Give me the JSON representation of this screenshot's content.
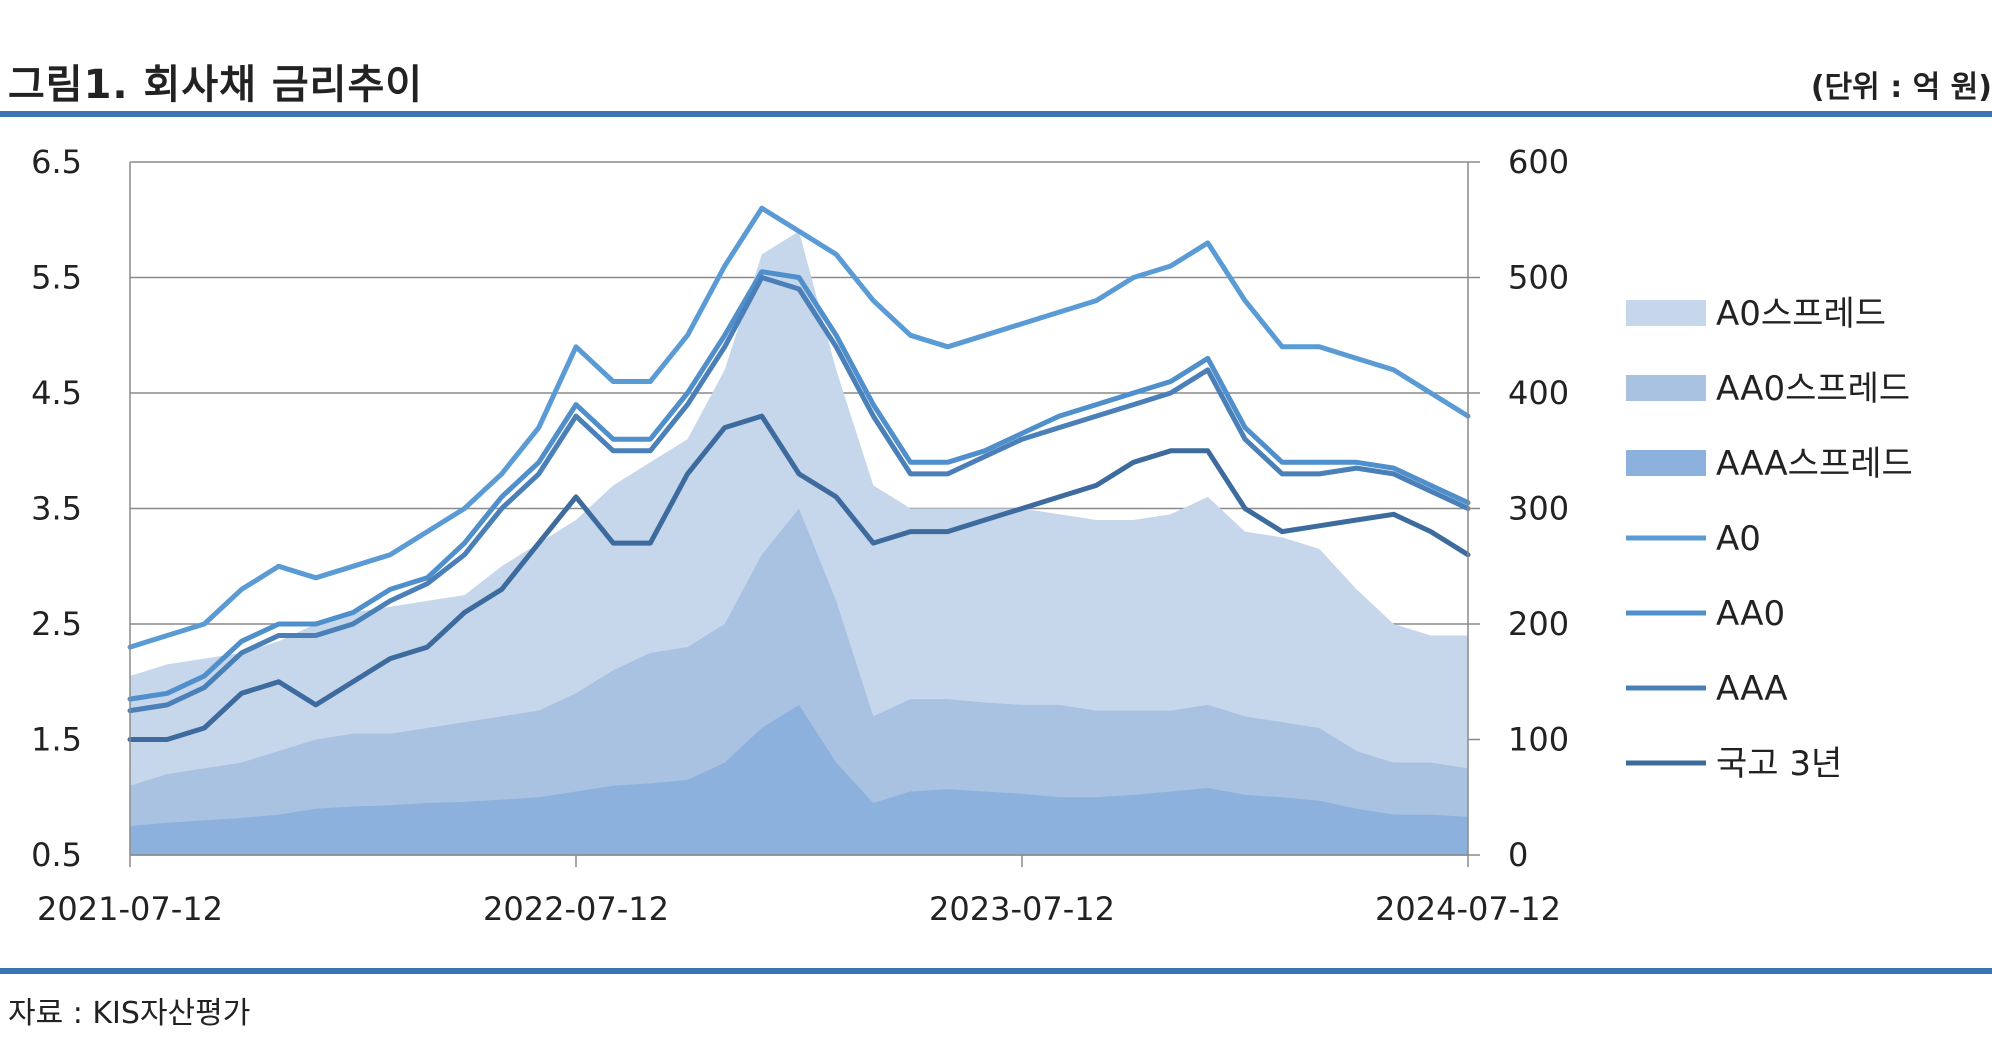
{
  "title": "그림1. 회사채 금리추이",
  "unit": "(단위 : 억 원)",
  "source": "자료 : KIS자산평가",
  "chart_data": {
    "type": "line",
    "title": "그림1. 회사채 금리추이",
    "x_ticks": [
      "2021-07-12",
      "2022-07-12",
      "2023-07-12",
      "2024-07-12"
    ],
    "y_left": {
      "min": 0.5,
      "max": 6.5,
      "ticks": [
        "6.5",
        "5.5",
        "4.5",
        "3.5",
        "2.5",
        "1.5",
        "0.5"
      ]
    },
    "y_right": {
      "min": 0,
      "max": 600,
      "ticks": [
        "600",
        "500",
        "400",
        "300",
        "200",
        "100",
        "0"
      ]
    },
    "grid": true,
    "legend_position": "right",
    "x": [
      "2021-07",
      "2021-08",
      "2021-09",
      "2021-10",
      "2021-11",
      "2021-12",
      "2022-01",
      "2022-02",
      "2022-03",
      "2022-04",
      "2022-05",
      "2022-06",
      "2022-07",
      "2022-08",
      "2022-09",
      "2022-10",
      "2022-11",
      "2022-12",
      "2023-01",
      "2023-02",
      "2023-03",
      "2023-04",
      "2023-05",
      "2023-06",
      "2023-07",
      "2023-08",
      "2023-09",
      "2023-10",
      "2023-11",
      "2023-12",
      "2024-01",
      "2024-02",
      "2024-03",
      "2024-04",
      "2024-05",
      "2024-06",
      "2024-07"
    ],
    "series": [
      {
        "name": "A0스프레드",
        "type": "area",
        "axis": "right",
        "color": "#c6d6eb",
        "values": [
          155,
          165,
          170,
          175,
          185,
          200,
          210,
          215,
          220,
          225,
          250,
          270,
          290,
          320,
          340,
          360,
          420,
          520,
          540,
          420,
          320,
          300,
          300,
          300,
          300,
          295,
          290,
          290,
          295,
          310,
          280,
          275,
          265,
          230,
          200,
          190,
          190
        ]
      },
      {
        "name": "AA0스프레드",
        "type": "area",
        "axis": "right",
        "color": "#a9c2e2",
        "values": [
          60,
          70,
          75,
          80,
          90,
          100,
          105,
          105,
          110,
          115,
          120,
          125,
          140,
          160,
          175,
          180,
          200,
          260,
          300,
          220,
          120,
          135,
          135,
          132,
          130,
          130,
          125,
          125,
          125,
          130,
          120,
          115,
          110,
          90,
          80,
          80,
          75
        ]
      },
      {
        "name": "AAA스프레드",
        "type": "area",
        "axis": "right",
        "color": "#8cb1dc",
        "values": [
          25,
          28,
          30,
          32,
          35,
          40,
          42,
          43,
          45,
          46,
          48,
          50,
          55,
          60,
          62,
          65,
          80,
          110,
          130,
          80,
          45,
          55,
          57,
          55,
          53,
          50,
          50,
          52,
          55,
          58,
          52,
          50,
          47,
          40,
          35,
          35,
          33
        ]
      },
      {
        "name": "A0",
        "type": "line",
        "axis": "left",
        "color": "#5b9bd5",
        "values": [
          2.3,
          2.4,
          2.5,
          2.8,
          3.0,
          2.9,
          3.0,
          3.1,
          3.3,
          3.5,
          3.8,
          4.2,
          4.9,
          4.6,
          4.6,
          5.0,
          5.6,
          6.1,
          5.9,
          5.7,
          5.3,
          5.0,
          4.9,
          5.0,
          5.1,
          5.2,
          5.3,
          5.5,
          5.6,
          5.8,
          5.3,
          4.9,
          4.9,
          4.8,
          4.7,
          4.5,
          4.3
        ]
      },
      {
        "name": "AA0",
        "type": "line",
        "axis": "left",
        "color": "#4f8fcc",
        "values": [
          1.85,
          1.9,
          2.05,
          2.35,
          2.5,
          2.5,
          2.6,
          2.8,
          2.9,
          3.2,
          3.6,
          3.9,
          4.4,
          4.1,
          4.1,
          4.5,
          5.0,
          5.55,
          5.5,
          5.0,
          4.4,
          3.9,
          3.9,
          4.0,
          4.15,
          4.3,
          4.4,
          4.5,
          4.6,
          4.8,
          4.2,
          3.9,
          3.9,
          3.9,
          3.85,
          3.7,
          3.55
        ]
      },
      {
        "name": "AAA",
        "type": "line",
        "axis": "left",
        "color": "#4a7fb8",
        "values": [
          1.75,
          1.8,
          1.95,
          2.25,
          2.4,
          2.4,
          2.5,
          2.7,
          2.85,
          3.1,
          3.5,
          3.8,
          4.3,
          4.0,
          4.0,
          4.4,
          4.9,
          5.5,
          5.4,
          4.9,
          4.3,
          3.8,
          3.8,
          3.95,
          4.1,
          4.2,
          4.3,
          4.4,
          4.5,
          4.7,
          4.1,
          3.8,
          3.8,
          3.85,
          3.8,
          3.65,
          3.5
        ]
      },
      {
        "name": "국고 3년",
        "type": "line",
        "axis": "left",
        "color": "#3d6b9e",
        "values": [
          1.5,
          1.5,
          1.6,
          1.9,
          2.0,
          1.8,
          2.0,
          2.2,
          2.3,
          2.6,
          2.8,
          3.2,
          3.6,
          3.2,
          3.2,
          3.8,
          4.2,
          4.3,
          3.8,
          3.6,
          3.2,
          3.3,
          3.3,
          3.4,
          3.5,
          3.6,
          3.7,
          3.9,
          4.0,
          4.0,
          3.5,
          3.3,
          3.35,
          3.4,
          3.45,
          3.3,
          3.1
        ]
      }
    ]
  }
}
